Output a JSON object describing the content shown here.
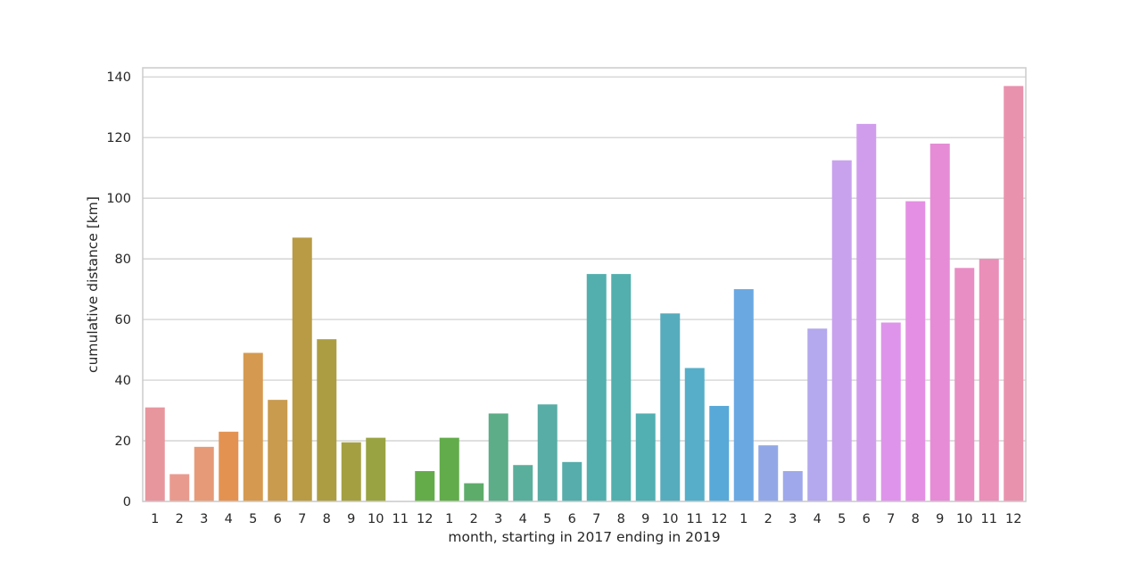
{
  "chart_data": {
    "type": "bar",
    "title": "",
    "xlabel": "month, starting in 2017 ending in 2019",
    "ylabel": "cumulative distance [km]",
    "ylim": [
      0,
      143
    ],
    "yticks": [
      0,
      20,
      40,
      60,
      80,
      100,
      120,
      140
    ],
    "grid": true,
    "categories": [
      "1",
      "2",
      "3",
      "4",
      "5",
      "6",
      "7",
      "8",
      "9",
      "10",
      "11",
      "12",
      "1",
      "2",
      "3",
      "4",
      "5",
      "6",
      "7",
      "8",
      "9",
      "10",
      "11",
      "12",
      "1",
      "2",
      "3",
      "4",
      "5",
      "6",
      "7",
      "8",
      "9",
      "10",
      "11",
      "12"
    ],
    "values": [
      31,
      9,
      18,
      23,
      49,
      33.5,
      87,
      53.5,
      19.5,
      21,
      0,
      10,
      21,
      6,
      29,
      12,
      32,
      13,
      75,
      75,
      29,
      62,
      44,
      31.5,
      70,
      18.5,
      10,
      57,
      112.5,
      124.5,
      59,
      99,
      118,
      77,
      80,
      137
    ],
    "colors": [
      "#e8969e",
      "#e99a8e",
      "#e69a78",
      "#e49252",
      "#d59a50",
      "#c89b4e",
      "#b89b44",
      "#ad9d42",
      "#a4a042",
      "#9aa342",
      "#8fa542",
      "#64ac4a",
      "#62ac4b",
      "#5eac6a",
      "#5cad88",
      "#5aae9c",
      "#58ada6",
      "#56adab",
      "#52afad",
      "#52afad",
      "#52afb2",
      "#56acbc",
      "#56aec8",
      "#58a9d8",
      "#6aa8e2",
      "#92a8e6",
      "#9ea8eb",
      "#b4a8ee",
      "#c8a2ed",
      "#d09ded",
      "#de94ea",
      "#e48fe4",
      "#e68cd6",
      "#e88ec4",
      "#e98fb8",
      "#e992ae"
    ]
  }
}
